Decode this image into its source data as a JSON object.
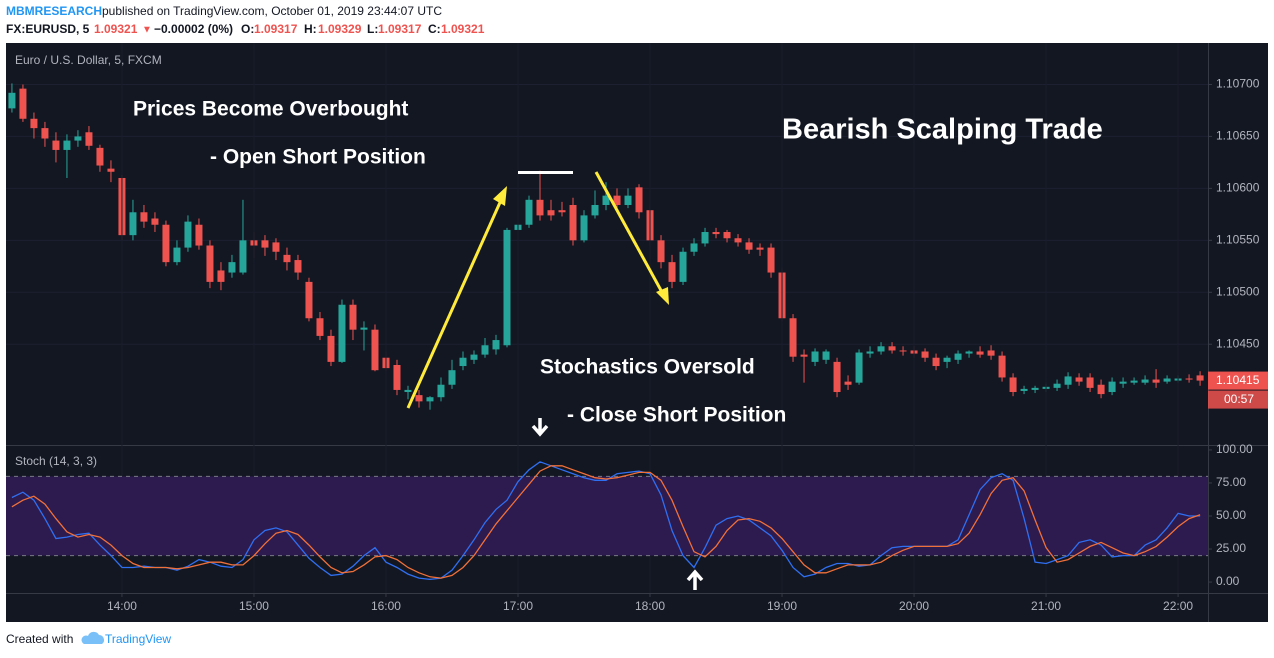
{
  "header": {
    "author": "MBMRESEARCH",
    "published": "published on TradingView.com, October 01, 2019 23:44:07 UTC",
    "symbol": "FX:EURUSD, 5",
    "last": "1.09321",
    "arrow": "▼",
    "change": "−0.00002 (0%)",
    "ohlc": [
      {
        "label": "O:",
        "value": "1.09317"
      },
      {
        "label": "H:",
        "value": "1.09329"
      },
      {
        "label": "L:",
        "value": "1.09317"
      },
      {
        "label": "C:",
        "value": "1.09321"
      }
    ]
  },
  "footer": {
    "created": "Created with",
    "brand": "TradingView"
  },
  "chart_data": [
    {
      "type": "candlestick",
      "title": "Euro / U.S. Dollar, 5, FXCM",
      "annotations": [
        "Prices Become Overbought",
        "- Open Short Position",
        "Bearish Scalping Trade",
        "Stochastics Oversold",
        "- Close Short Position"
      ],
      "countdown": "00:57",
      "up_color": "#26a69a",
      "down_color": "#ef5350",
      "grid": true,
      "xlim": [
        787.3,
        1333.6
      ],
      "ylim": [
        1.10353,
        1.10738
      ],
      "yticks": [
        {
          "value": 1.107,
          "label": "1.10700"
        },
        {
          "value": 1.1065,
          "label": "1.10650"
        },
        {
          "value": 1.106,
          "label": "1.10600"
        },
        {
          "value": 1.1055,
          "label": "1.10550"
        },
        {
          "value": 1.105,
          "label": "1.10500"
        },
        {
          "value": 1.1045,
          "label": "1.10450"
        }
      ],
      "x": [
        790,
        795,
        800,
        805,
        810,
        815,
        820,
        825,
        830,
        835,
        840,
        845,
        850,
        855,
        860,
        865,
        870,
        875,
        880,
        885,
        890,
        895,
        900,
        905,
        910,
        915,
        920,
        925,
        930,
        935,
        940,
        945,
        950,
        955,
        960,
        965,
        970,
        975,
        980,
        985,
        990,
        995,
        1000,
        1005,
        1010,
        1015,
        1020,
        1025,
        1030,
        1035,
        1040,
        1045,
        1050,
        1055,
        1060,
        1065,
        1070,
        1075,
        1080,
        1085,
        1090,
        1095,
        1100,
        1105,
        1110,
        1115,
        1120,
        1125,
        1130,
        1135,
        1140,
        1145,
        1150,
        1155,
        1160,
        1165,
        1170,
        1175,
        1180,
        1185,
        1190,
        1195,
        1200,
        1205,
        1210,
        1215,
        1220,
        1225,
        1230,
        1235,
        1240,
        1245,
        1250,
        1255,
        1260,
        1265,
        1270,
        1275,
        1280,
        1285,
        1290,
        1295,
        1300,
        1305,
        1310,
        1315,
        1320,
        1325,
        1330
      ],
      "open": [
        1.10677,
        1.10696,
        1.10667,
        1.10658,
        1.10646,
        1.10637,
        1.10646,
        1.10654,
        1.10639,
        1.10619,
        1.1061,
        1.10555,
        1.10577,
        1.10571,
        1.10565,
        1.10529,
        1.10543,
        1.10565,
        1.10545,
        1.10521,
        1.10519,
        1.10519,
        1.1055,
        1.1055,
        1.10548,
        1.10536,
        1.10531,
        1.1051,
        1.10475,
        1.10458,
        1.10433,
        1.10488,
        1.10464,
        1.10464,
        1.10437,
        1.1043,
        1.10404,
        1.10401,
        1.10395,
        1.10399,
        1.10411,
        1.10429,
        1.10435,
        1.1044,
        1.10445,
        1.10449,
        1.1056,
        1.10565,
        1.10589,
        1.10579,
        1.10579,
        1.10584,
        1.1055,
        1.10574,
        1.10584,
        1.10593,
        1.10584,
        1.10601,
        1.10579,
        1.1055,
        1.10529,
        1.1051,
        1.10539,
        1.10547,
        1.10558,
        1.10558,
        1.10552,
        1.10548,
        1.10543,
        1.10543,
        1.10519,
        1.10475,
        1.1044,
        1.10433,
        1.10435,
        1.10433,
        1.10414,
        1.10413,
        1.10441,
        1.10443,
        1.10448,
        1.10444,
        1.10444,
        1.10443,
        1.10437,
        1.10433,
        1.10435,
        1.10441,
        1.10443,
        1.10444,
        1.10439,
        1.10418,
        1.10405,
        1.10406,
        1.10407,
        1.10408,
        1.10411,
        1.10418,
        1.10418,
        1.10411,
        1.10404,
        1.10412,
        1.10413,
        1.10413,
        1.10416,
        1.10414,
        1.10415,
        1.10417,
        1.1042
      ],
      "high": [
        1.10701,
        1.107,
        1.10673,
        1.10664,
        1.10654,
        1.10652,
        1.10656,
        1.1066,
        1.10642,
        1.10627,
        1.10613,
        1.10589,
        1.10584,
        1.10577,
        1.10569,
        1.1055,
        1.10574,
        1.10571,
        1.1055,
        1.10529,
        1.10536,
        1.10589,
        1.10558,
        1.10555,
        1.10552,
        1.10543,
        1.10536,
        1.10514,
        1.10481,
        1.10464,
        1.10493,
        1.10493,
        1.10472,
        1.10469,
        1.10443,
        1.10435,
        1.1041,
        1.10406,
        1.104,
        1.10418,
        1.10435,
        1.10443,
        1.10444,
        1.10456,
        1.10459,
        1.10562,
        1.10571,
        1.10593,
        1.10617,
        1.10589,
        1.10587,
        1.10591,
        1.10579,
        1.10598,
        1.10606,
        1.106,
        1.106,
        1.10604,
        1.10584,
        1.10555,
        1.10536,
        1.10543,
        1.10552,
        1.10562,
        1.10562,
        1.1056,
        1.10556,
        1.10552,
        1.10547,
        1.10547,
        1.10523,
        1.10479,
        1.10445,
        1.10446,
        1.10445,
        1.10437,
        1.1042,
        1.10445,
        1.10448,
        1.10452,
        1.10452,
        1.10448,
        1.10448,
        1.10446,
        1.10441,
        1.10439,
        1.10444,
        1.10444,
        1.10448,
        1.10449,
        1.10443,
        1.10422,
        1.1041,
        1.1041,
        1.10412,
        1.10416,
        1.10423,
        1.10422,
        1.10422,
        1.10416,
        1.10418,
        1.10418,
        1.10418,
        1.1042,
        1.10426,
        1.1042,
        1.1042,
        1.10421,
        1.10424
      ],
      "low": [
        1.10673,
        1.10664,
        1.10648,
        1.1064,
        1.10625,
        1.1061,
        1.1064,
        1.10637,
        1.10616,
        1.10606,
        1.1055,
        1.1055,
        1.10562,
        1.10558,
        1.10525,
        1.10526,
        1.10539,
        1.10541,
        1.10504,
        1.10502,
        1.10514,
        1.10517,
        1.10533,
        1.10535,
        1.10531,
        1.10521,
        1.10512,
        1.10472,
        1.10454,
        1.10429,
        1.10432,
        1.10454,
        1.10444,
        1.10424,
        1.10424,
        1.10401,
        1.10397,
        1.10389,
        1.10387,
        1.10395,
        1.10407,
        1.10425,
        1.10431,
        1.10437,
        1.1044,
        1.10447,
        1.10555,
        1.10562,
        1.10569,
        1.10569,
        1.10573,
        1.10545,
        1.10548,
        1.10571,
        1.10579,
        1.10577,
        1.10581,
        1.10571,
        1.10545,
        1.10523,
        1.10504,
        1.10507,
        1.10535,
        1.10544,
        1.10552,
        1.10548,
        1.10544,
        1.10537,
        1.10535,
        1.10514,
        1.10472,
        1.10433,
        1.10413,
        1.10429,
        1.10431,
        1.10399,
        1.10406,
        1.10411,
        1.10437,
        1.1044,
        1.10441,
        1.10439,
        1.10437,
        1.10433,
        1.10425,
        1.10427,
        1.10431,
        1.10437,
        1.10437,
        1.10435,
        1.10414,
        1.104,
        1.10402,
        1.10403,
        1.10404,
        1.10405,
        1.10407,
        1.1041,
        1.10404,
        1.10398,
        1.10401,
        1.10408,
        1.10411,
        1.10411,
        1.10408,
        1.10412,
        1.10413,
        1.10413,
        1.1041
      ],
      "close": [
        1.10692,
        1.10667,
        1.10658,
        1.10648,
        1.10637,
        1.10646,
        1.1065,
        1.10641,
        1.10622,
        1.10616,
        1.10555,
        1.10577,
        1.10568,
        1.10565,
        1.10529,
        1.10543,
        1.10568,
        1.10545,
        1.1051,
        1.1051,
        1.10529,
        1.1055,
        1.10545,
        1.10543,
        1.10539,
        1.10529,
        1.10519,
        1.10475,
        1.10458,
        1.10433,
        1.10488,
        1.10464,
        1.10466,
        1.10425,
        1.10427,
        1.10406,
        1.10406,
        1.10395,
        1.10399,
        1.10411,
        1.10425,
        1.10437,
        1.1044,
        1.10449,
        1.10454,
        1.1056,
        1.10565,
        1.10589,
        1.10574,
        1.10574,
        1.10577,
        1.1055,
        1.10574,
        1.10584,
        1.10593,
        1.10584,
        1.10593,
        1.10577,
        1.1055,
        1.10529,
        1.1051,
        1.10539,
        1.10547,
        1.10558,
        1.10556,
        1.10552,
        1.10548,
        1.10541,
        1.10541,
        1.10519,
        1.10475,
        1.10438,
        1.10438,
        1.10443,
        1.10443,
        1.10404,
        1.10411,
        1.10442,
        1.10443,
        1.10448,
        1.10444,
        1.10443,
        1.10441,
        1.10437,
        1.10429,
        1.10437,
        1.10441,
        1.10443,
        1.1044,
        1.10439,
        1.10418,
        1.10404,
        1.10407,
        1.10408,
        1.10409,
        1.10412,
        1.10419,
        1.10414,
        1.10408,
        1.10402,
        1.10414,
        1.10414,
        1.10415,
        1.10416,
        1.10413,
        1.10417,
        1.10417,
        1.10416,
        1.10415
      ]
    },
    {
      "type": "line",
      "title": "Stoch (14, 3, 3)",
      "band": [
        20,
        80
      ],
      "band_color": "#2d1a4e",
      "xlim": [
        787.3,
        1333.6
      ],
      "ylim": [
        -8.3,
        103
      ],
      "xticks": [
        {
          "value": 840,
          "label": "14:00"
        },
        {
          "value": 900,
          "label": "15:00"
        },
        {
          "value": 960,
          "label": "16:00"
        },
        {
          "value": 1020,
          "label": "17:00"
        },
        {
          "value": 1080,
          "label": "18:00"
        },
        {
          "value": 1140,
          "label": "19:00"
        },
        {
          "value": 1200,
          "label": "20:00"
        },
        {
          "value": 1260,
          "label": "21:00"
        },
        {
          "value": 1320,
          "label": "22:00"
        }
      ],
      "yticks": [
        {
          "value": 100,
          "label": "100.00"
        },
        {
          "value": 75,
          "label": "75.00"
        },
        {
          "value": 50,
          "label": "50.00"
        },
        {
          "value": 25,
          "label": "25.00"
        },
        {
          "value": 0,
          "label": "0.00"
        }
      ],
      "x": [
        790,
        795,
        800,
        805,
        810,
        815,
        820,
        825,
        830,
        835,
        840,
        845,
        850,
        855,
        860,
        865,
        870,
        875,
        880,
        885,
        890,
        895,
        900,
        905,
        910,
        915,
        920,
        925,
        930,
        935,
        940,
        945,
        950,
        955,
        960,
        965,
        970,
        975,
        980,
        985,
        990,
        995,
        1000,
        1005,
        1010,
        1015,
        1020,
        1025,
        1030,
        1035,
        1040,
        1045,
        1050,
        1055,
        1060,
        1065,
        1070,
        1075,
        1080,
        1085,
        1090,
        1095,
        1100,
        1105,
        1110,
        1115,
        1120,
        1125,
        1130,
        1135,
        1140,
        1145,
        1150,
        1155,
        1160,
        1165,
        1170,
        1175,
        1180,
        1185,
        1190,
        1195,
        1200,
        1205,
        1210,
        1215,
        1220,
        1225,
        1230,
        1235,
        1240,
        1245,
        1250,
        1255,
        1260,
        1265,
        1270,
        1275,
        1280,
        1285,
        1290,
        1295,
        1300,
        1305,
        1310,
        1315,
        1320,
        1325,
        1330
      ],
      "series": [
        {
          "color": "#2f6ff2",
          "values": [
            64,
            68,
            62,
            48,
            33,
            34,
            36,
            37,
            28,
            20,
            11,
            11,
            12,
            11,
            11,
            9,
            12,
            17,
            15,
            12,
            11,
            17,
            32,
            39,
            41,
            38,
            28,
            18,
            11,
            5,
            6,
            12,
            20,
            26,
            15,
            11,
            6,
            3,
            2,
            3,
            9,
            20,
            32,
            45,
            55,
            62,
            76,
            85,
            91,
            88,
            85,
            82,
            79,
            77,
            77,
            82,
            83,
            84,
            82,
            66,
            39,
            20,
            11,
            26,
            43,
            48,
            50,
            47,
            41,
            35,
            24,
            11,
            4,
            6,
            11,
            14,
            14,
            12,
            13,
            20,
            26,
            27,
            27,
            27,
            27,
            27,
            32,
            51,
            70,
            79,
            82,
            77,
            48,
            15,
            14,
            17,
            20,
            30,
            32,
            28,
            19,
            20,
            20,
            28,
            32,
            41,
            52,
            50,
            50
          ]
        },
        {
          "color": "#f0703a",
          "values": [
            57,
            62,
            65,
            59,
            48,
            38,
            34,
            36,
            34,
            28,
            20,
            14,
            11,
            11,
            11,
            10,
            11,
            13,
            15,
            15,
            13,
            13,
            20,
            29,
            37,
            39,
            36,
            28,
            19,
            11,
            7,
            8,
            13,
            19,
            20,
            17,
            11,
            7,
            4,
            3,
            5,
            11,
            20,
            32,
            44,
            54,
            64,
            74,
            84,
            88,
            88,
            85,
            82,
            79,
            78,
            79,
            81,
            83,
            83,
            77,
            62,
            42,
            23,
            19,
            27,
            39,
            47,
            48,
            46,
            41,
            33,
            23,
            13,
            7,
            7,
            10,
            13,
            13,
            13,
            15,
            20,
            24,
            27,
            27,
            27,
            27,
            29,
            37,
            51,
            67,
            77,
            79,
            69,
            47,
            26,
            15,
            17,
            22,
            27,
            30,
            26,
            22,
            20,
            23,
            27,
            34,
            42,
            48,
            51
          ]
        }
      ]
    }
  ]
}
